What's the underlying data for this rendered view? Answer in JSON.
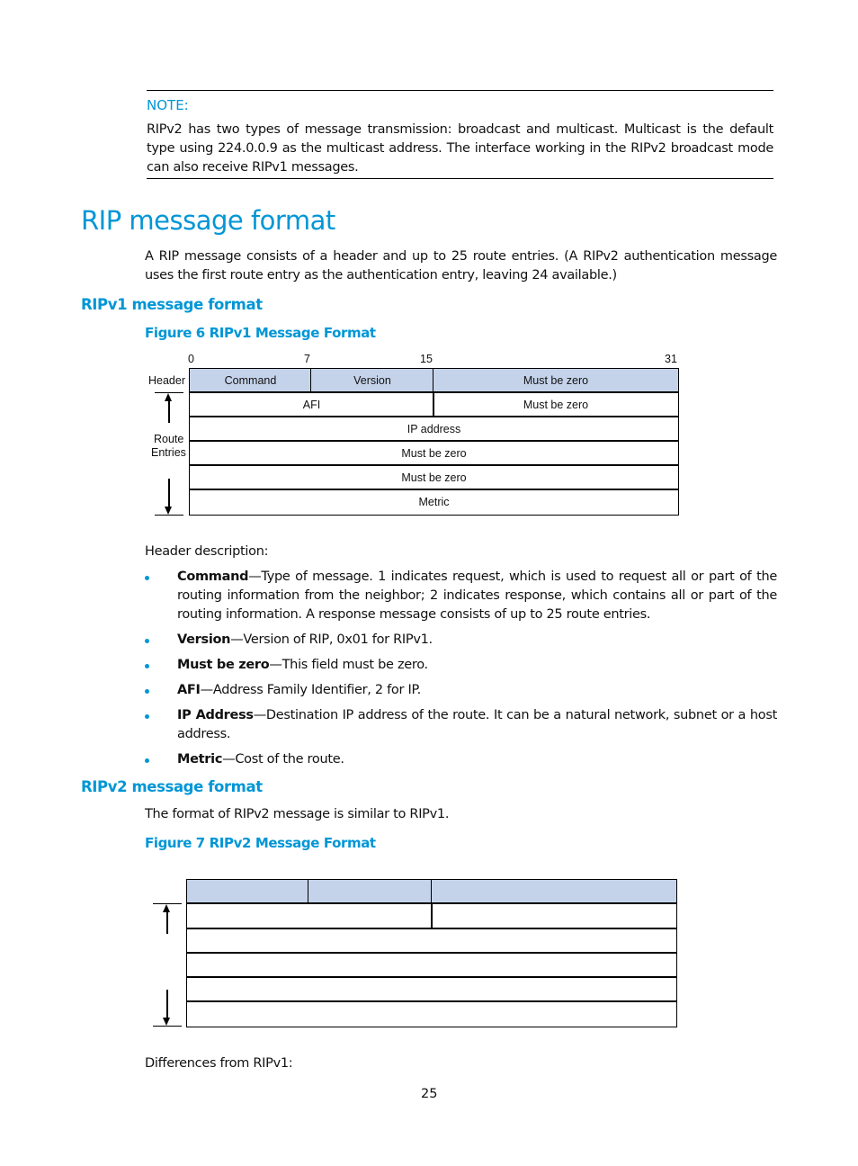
{
  "note": {
    "label": "NOTE:",
    "text": "RIPv2 has two types of message transmission: broadcast and multicast. Multicast is the default type using 224.0.0.9 as the multicast address. The interface working in the RIPv2 broadcast mode can also receive RIPv1 messages."
  },
  "section": {
    "title": "RIP message format",
    "intro": "A RIP message consists of a header and up to 25 route entries. (A RIPv2 authentication message uses the first route entry as the authentication entry, leaving 24 available.)"
  },
  "ripv1": {
    "heading": "RIPv1 message format",
    "figure_caption": "Figure 6 RIPv1 Message Format",
    "bits": [
      "0",
      "7",
      "15",
      "31"
    ],
    "side_labels": {
      "header": "Header",
      "route": "Route",
      "entries": "Entries"
    },
    "fields": {
      "command": "Command",
      "version": "Version",
      "must_be_zero_1": "Must be zero",
      "afi": "AFI",
      "must_be_zero_2": "Must be zero",
      "ip_address": "IP address",
      "must_be_zero_3": "Must be zero",
      "must_be_zero_4": "Must be zero",
      "metric": "Metric"
    },
    "header_desc": "Header description:",
    "bullets": [
      {
        "term": "Command",
        "text": "—Type of message. 1 indicates request, which is used to request all or part of the routing information from the neighbor; 2 indicates response, which contains all or part of the routing information. A response message consists of up to 25 route entries."
      },
      {
        "term": "Version",
        "text": "—Version of RIP, 0x01 for RIPv1."
      },
      {
        "term": "Must be zero",
        "text": "—This field must be zero."
      },
      {
        "term": "AFI",
        "text": "—Address Family Identifier, 2 for IP."
      },
      {
        "term": "IP Address",
        "text": "—Destination IP address of the route. It can be a natural network, subnet or a host address."
      },
      {
        "term": "Metric",
        "text": "—Cost of the route."
      }
    ]
  },
  "ripv2": {
    "heading": "RIPv2 message format",
    "intro": "The format of RIPv2 message is similar to RIPv1.",
    "figure_caption": "Figure 7 RIPv2 Message Format",
    "differences": "Differences from RIPv1:"
  },
  "footer": {
    "page_number": "25"
  },
  "colors": {
    "accent": "#0096d6",
    "header_fill": "#c5d3ea"
  }
}
